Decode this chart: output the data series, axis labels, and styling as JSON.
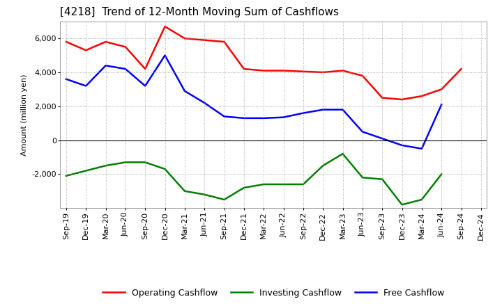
{
  "title": "[4218]  Trend of 12-Month Moving Sum of Cashflows",
  "ylabel": "Amount (million yen)",
  "x_labels": [
    "Sep-19",
    "Dec-19",
    "Mar-20",
    "Jun-20",
    "Sep-20",
    "Dec-20",
    "Mar-21",
    "Jun-21",
    "Sep-21",
    "Dec-21",
    "Mar-22",
    "Jun-22",
    "Sep-22",
    "Dec-22",
    "Mar-23",
    "Jun-23",
    "Sep-23",
    "Dec-23",
    "Mar-24",
    "Jun-24",
    "Sep-24",
    "Dec-24"
  ],
  "operating": [
    5800,
    5300,
    5800,
    5500,
    4200,
    6700,
    6000,
    5900,
    5800,
    4200,
    4100,
    4100,
    4050,
    4000,
    4100,
    3800,
    2500,
    2400,
    2600,
    3000,
    4200,
    null
  ],
  "investing": [
    -2100,
    -1800,
    -1500,
    -1300,
    -1300,
    -1700,
    -3000,
    -3200,
    -3500,
    -2800,
    -2600,
    -2600,
    -2600,
    -1500,
    -800,
    -2200,
    -2300,
    -3800,
    -3500,
    -2000,
    null,
    null
  ],
  "free": [
    3600,
    3200,
    4400,
    4200,
    3200,
    5000,
    2900,
    2200,
    1400,
    1300,
    1300,
    1350,
    1600,
    1800,
    1800,
    500,
    100,
    -300,
    -500,
    2100,
    null,
    null
  ],
  "operating_color": "#ff0000",
  "investing_color": "#008000",
  "free_color": "#0000ff",
  "ylim": [
    -4000,
    7000
  ],
  "yticks": [
    -2000,
    0,
    2000,
    4000,
    6000
  ],
  "background_color": "#ffffff",
  "grid_color": "#999999",
  "title_fontsize": 11,
  "axis_label_fontsize": 8,
  "tick_fontsize": 8,
  "legend_labels": [
    "Operating Cashflow",
    "Investing Cashflow",
    "Free Cashflow"
  ]
}
